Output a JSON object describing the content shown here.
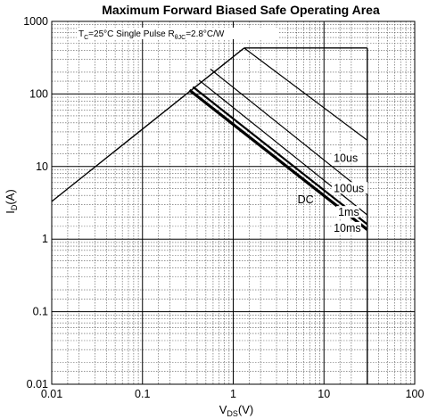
{
  "chart_data": {
    "type": "line",
    "title": "Maximum Forward Biased Safe Operating Area",
    "xlabel": {
      "main": "V",
      "sub": "DS",
      "suffix": "(V)"
    },
    "ylabel": {
      "main": "I",
      "sub": "D",
      "suffix": "(A)"
    },
    "xscale": "log",
    "yscale": "log",
    "xlim": [
      0.01,
      100
    ],
    "ylim": [
      0.01,
      1000
    ],
    "x_ticks": [
      "0.01",
      "0.1",
      "1",
      "10",
      "100"
    ],
    "y_ticks": [
      "0.01",
      "0.1",
      "1",
      "10",
      "100",
      "1000"
    ],
    "grid": true,
    "annotation": {
      "parts": [
        {
          "text": "T",
          "sub": false
        },
        {
          "text": "C",
          "sub": true
        },
        {
          "text": "=25°C Single Pulse R",
          "sub": false
        },
        {
          "text": "θJC",
          "sub": true
        },
        {
          "text": "=2.8°C/W",
          "sub": false
        }
      ]
    },
    "boundaries": {
      "rds_on_limit": {
        "x": [
          0.01,
          1.32
        ],
        "y": [
          3.3,
          430
        ]
      },
      "current_limit": {
        "x": [
          1.32,
          30
        ],
        "y": [
          430,
          430
        ]
      },
      "voltage_limit": {
        "x": [
          30,
          30
        ],
        "y": [
          430,
          0.01
        ]
      }
    },
    "series": [
      {
        "name": "10us",
        "x": [
          1.32,
          30
        ],
        "y": [
          430,
          23
        ],
        "width": 1.2
      },
      {
        "name": "100us",
        "x": [
          0.56,
          30
        ],
        "y": [
          220,
          4.1
        ],
        "width": 1.2
      },
      {
        "name": "1ms",
        "x": [
          0.42,
          30
        ],
        "y": [
          155,
          2.15
        ],
        "width": 1.2
      },
      {
        "name": "10ms",
        "x": [
          0.36,
          30
        ],
        "y": [
          125,
          1.6
        ],
        "width": 2.2
      },
      {
        "name": "DC",
        "x": [
          0.33,
          30
        ],
        "y": [
          113,
          1.35
        ],
        "width": 3.2
      }
    ],
    "series_labels": [
      {
        "series": "10us",
        "text": "10us",
        "x": 12.5,
        "y": 12
      },
      {
        "series": "100us",
        "text": "100us",
        "x": 12.5,
        "y": 4.6
      },
      {
        "series": "1ms",
        "text": "1ms",
        "x": 14,
        "y": 2.15
      },
      {
        "series": "10ms",
        "text": "10ms",
        "x": 12.5,
        "y": 1.3
      },
      {
        "series": "DC",
        "text": "DC",
        "x": 5.0,
        "y": 3.2
      }
    ]
  }
}
